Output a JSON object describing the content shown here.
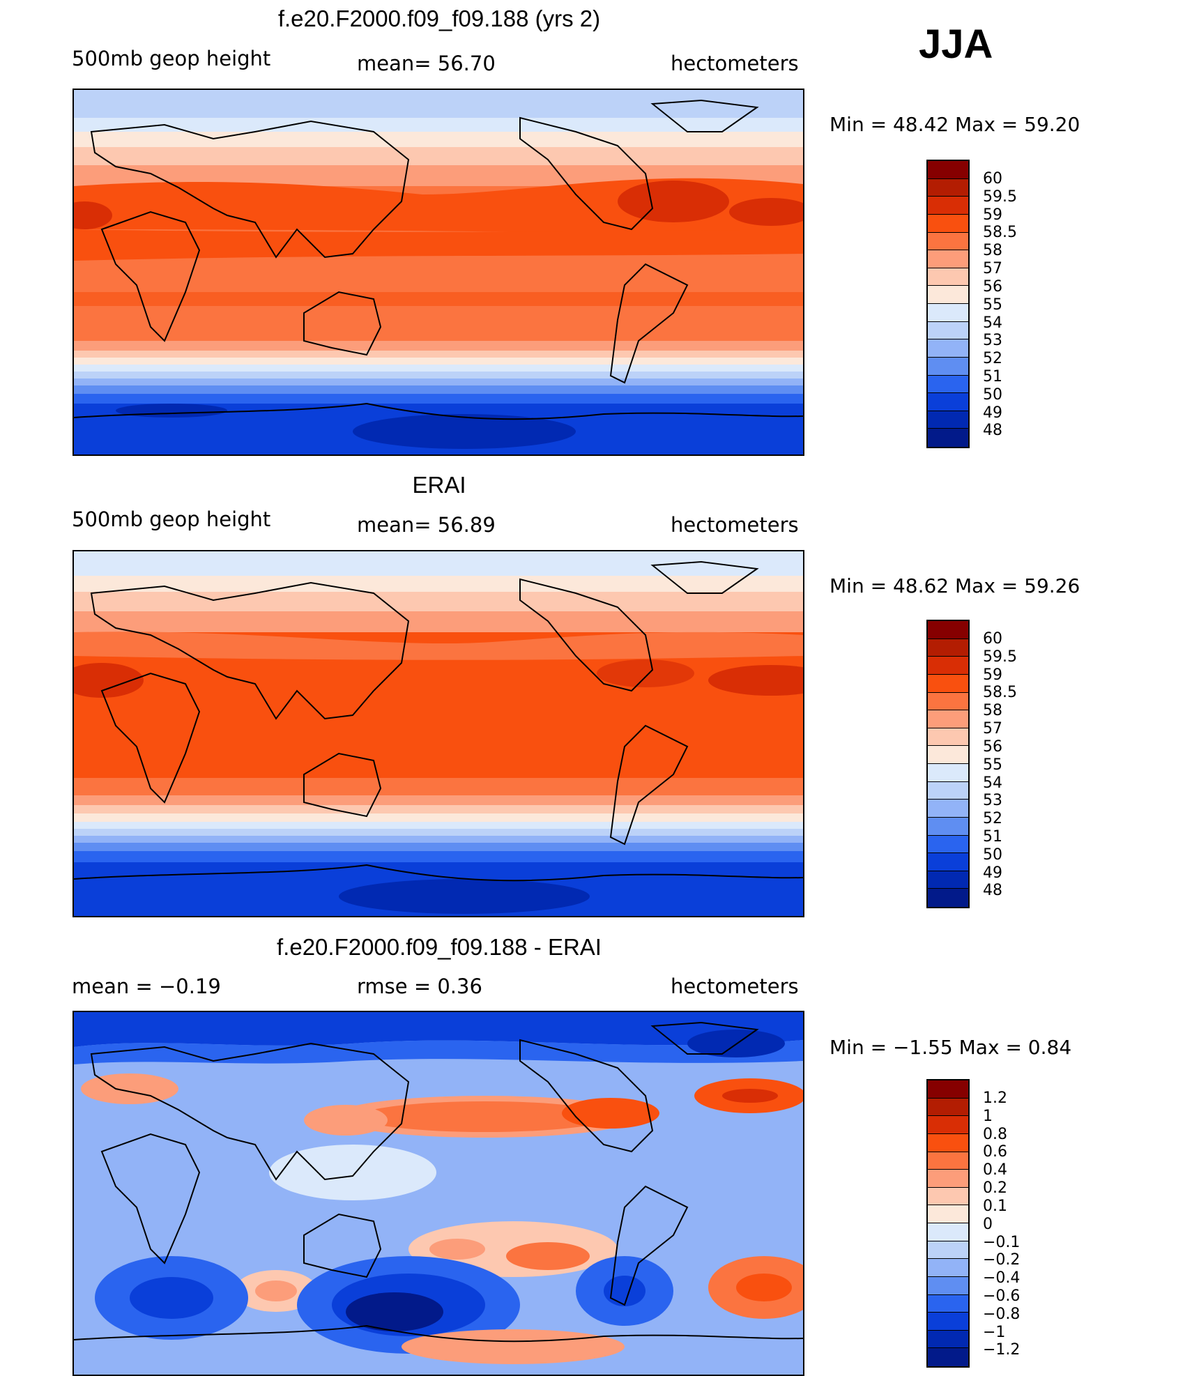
{
  "season": "JJA",
  "panels": [
    {
      "title": "f.e20.F2000.f09_f09.188 (yrs 2)",
      "left_label": "500mb  geop  height",
      "center_label": "mean=   56.70",
      "right_label": "hectometers",
      "minmax": "Min  =    48.42  Max  =    59.20",
      "levels": [
        "60",
        "59.5",
        "59",
        "58.5",
        "58",
        "57",
        "56",
        "55",
        "54",
        "53",
        "52",
        "51",
        "50",
        "49",
        "48"
      ],
      "colors": [
        "#860000",
        "#b31d02",
        "#d92e05",
        "#f9500f",
        "#fb7440",
        "#fc9d7a",
        "#fdc8b0",
        "#fce8da",
        "#dbe9fb",
        "#bcd2f8",
        "#92b3f7",
        "#5f8ef2",
        "#2a64ef",
        "#0a3fd9",
        "#0129b2",
        "#021a8a"
      ]
    },
    {
      "title": "ERAI",
      "left_label": "500mb  geop  height",
      "center_label": "mean=   56.89",
      "right_label": "hectometers",
      "minmax": "Min  =    48.62  Max  =    59.26",
      "levels": [
        "60",
        "59.5",
        "59",
        "58.5",
        "58",
        "57",
        "56",
        "55",
        "54",
        "53",
        "52",
        "51",
        "50",
        "49",
        "48"
      ],
      "colors": [
        "#860000",
        "#b31d02",
        "#d92e05",
        "#f9500f",
        "#fb7440",
        "#fc9d7a",
        "#fdc8b0",
        "#fce8da",
        "#dbe9fb",
        "#bcd2f8",
        "#92b3f7",
        "#5f8ef2",
        "#2a64ef",
        "#0a3fd9",
        "#0129b2",
        "#021a8a"
      ]
    },
    {
      "title": "f.e20.F2000.f09_f09.188 - ERAI",
      "left_label": "mean  =    −0.19",
      "center_label": "rmse  =     0.36",
      "right_label": "hectometers",
      "minmax": "Min  =   −1.55  Max  =      0.84",
      "levels": [
        "1.2",
        "1",
        "0.8",
        "0.6",
        "0.4",
        "0.2",
        "0.1",
        "0",
        "−0.1",
        "−0.2",
        "−0.4",
        "−0.6",
        "−0.8",
        "−1",
        "−1.2"
      ],
      "colors": [
        "#860000",
        "#b31d02",
        "#d92e05",
        "#f9500f",
        "#fb7440",
        "#fc9d7a",
        "#fdc8b0",
        "#fce8da",
        "#dbe9fb",
        "#bcd2f8",
        "#92b3f7",
        "#5f8ef2",
        "#2a64ef",
        "#0a3fd9",
        "#0129b2",
        "#021a8a"
      ]
    }
  ],
  "chart_data": [
    {
      "type": "heatmap",
      "title": "f.e20.F2000.f09_f09.188 (yrs 2)",
      "variable": "500mb geop height",
      "units": "hectometers",
      "mean": 56.7,
      "min": 48.42,
      "max": 59.2,
      "contour_levels": [
        48,
        49,
        50,
        51,
        52,
        53,
        54,
        55,
        56,
        57,
        58,
        58.5,
        59,
        59.5,
        60
      ]
    },
    {
      "type": "heatmap",
      "title": "ERAI",
      "variable": "500mb geop height",
      "units": "hectometers",
      "mean": 56.89,
      "min": 48.62,
      "max": 59.26,
      "contour_levels": [
        48,
        49,
        50,
        51,
        52,
        53,
        54,
        55,
        56,
        57,
        58,
        58.5,
        59,
        59.5,
        60
      ]
    },
    {
      "type": "heatmap",
      "title": "f.e20.F2000.f09_f09.188 - ERAI",
      "units": "hectometers",
      "mean": -0.19,
      "rmse": 0.36,
      "min": -1.55,
      "max": 0.84,
      "contour_levels": [
        -1.2,
        -1,
        -0.8,
        -0.6,
        -0.4,
        -0.2,
        -0.1,
        0,
        0.1,
        0.2,
        0.4,
        0.6,
        0.8,
        1,
        1.2
      ]
    }
  ]
}
